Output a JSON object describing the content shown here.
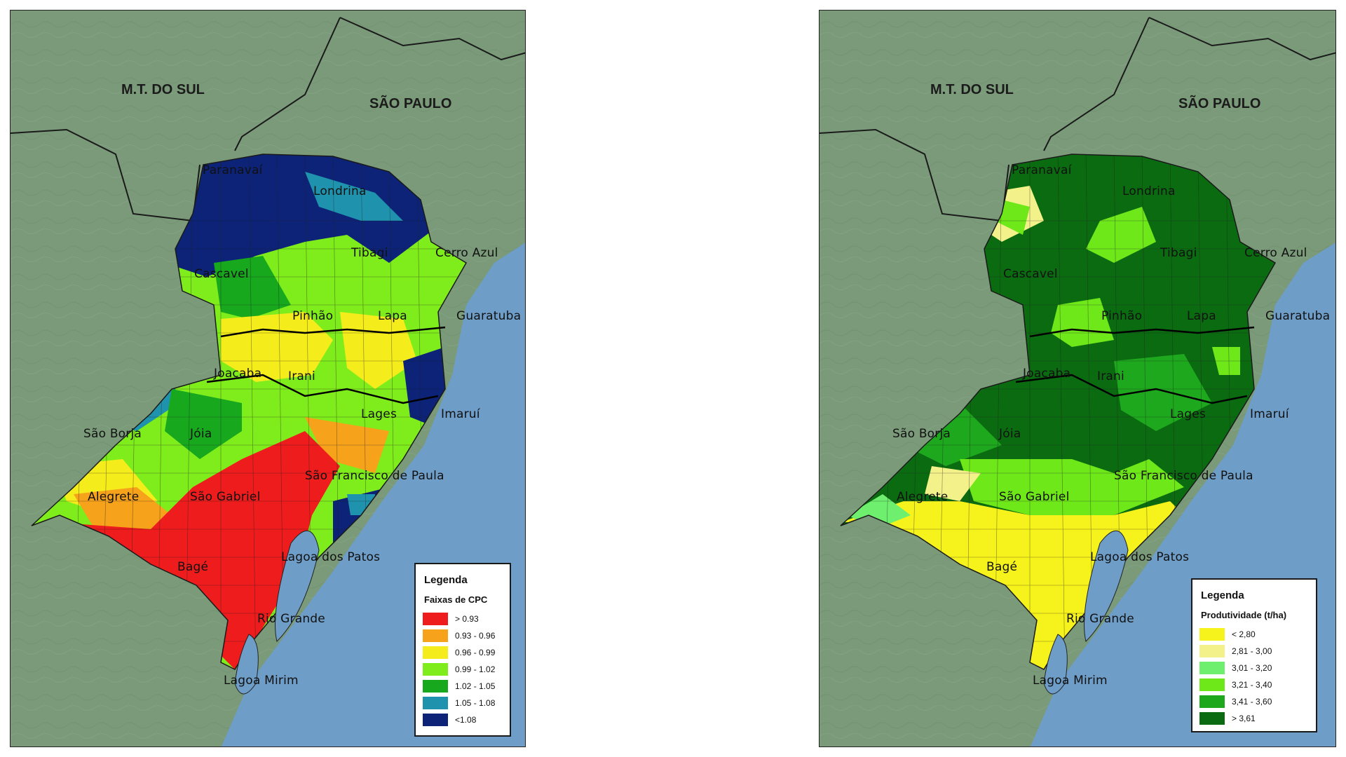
{
  "colors": {
    "ocean": "#6e9dc8",
    "land": "#7a9a7a",
    "border_line": "#1a1a1a"
  },
  "left_map": {
    "state_labels": {
      "mt_do_sul": "M.T. DO SUL",
      "sao_paulo": "SÃO PAULO"
    },
    "places": {
      "paranavai": "Paranavaí",
      "londrina": "Londrina",
      "tibagi": "Tibagi",
      "cerro_azul": "Cerro Azul",
      "cascavel": "Cascavel",
      "pinhao": "Pinhão",
      "lapa": "Lapa",
      "guaratuba": "Guaratuba",
      "lages": "Lages",
      "imarui": "Imaruí",
      "joacaba": "Joaçaba",
      "irani": "Irani",
      "sao_borja": "São Borja",
      "joia": "Jóia",
      "sao_francisco_de_paula": "São Francisco de Paula",
      "alegrete": "Alegrete",
      "sao_gabriel": "São Gabriel",
      "lagoa_dos_patos": "Lagoa dos Patos",
      "bage": "Bagé",
      "rio_grande": "Rio Grande",
      "lagoa_mirim": "Lagoa Mirim"
    },
    "legend": {
      "title": "Legenda",
      "subtitle": "Faixas de CPC",
      "items": [
        {
          "label": "> 0.93",
          "color": "#ee1c1c"
        },
        {
          "label": "0.93 - 0.96",
          "color": "#f7a21b"
        },
        {
          "label": "0.96 - 0.99",
          "color": "#f5ec1c"
        },
        {
          "label": "0.99 - 1.02",
          "color": "#7fec1c"
        },
        {
          "label": "1.02 - 1.05",
          "color": "#17a81d"
        },
        {
          "label": "1.05 - 1.08",
          "color": "#1f93ad"
        },
        {
          "label": "<1.08",
          "color": "#0c2377"
        }
      ]
    }
  },
  "right_map": {
    "state_labels": {
      "mt_do_sul": "M.T. DO SUL",
      "sao_paulo": "SÃO PAULO"
    },
    "places": {
      "paranavai": "Paranavaí",
      "londrina": "Londrina",
      "tibagi": "Tibagi",
      "cerro_azul": "Cerro Azul",
      "cascavel": "Cascavel",
      "pinhao": "Pinhão",
      "lapa": "Lapa",
      "guaratuba": "Guaratuba",
      "lages": "Lages",
      "imarui": "Imaruí",
      "joacaba": "Joaçaba",
      "irani": "Irani",
      "sao_borja": "São Borja",
      "joia": "Jóia",
      "sao_francisco_de_paula": "São Francisco de Paula",
      "alegrete": "Alegrete",
      "sao_gabriel": "São Gabriel",
      "lagoa_dos_patos": "Lagoa dos Patos",
      "bage": "Bagé",
      "rio_grande": "Rio Grande",
      "lagoa_mirim": "Lagoa Mirim"
    },
    "legend": {
      "title": "Legenda",
      "subtitle": "Produtividade (t/ha)",
      "items": [
        {
          "label": "< 2,80",
          "color": "#f6f21c"
        },
        {
          "label": "2,81 - 3,00",
          "color": "#f3f18a"
        },
        {
          "label": "3,01 - 3,20",
          "color": "#6ef06e"
        },
        {
          "label": "3,21 - 3,40",
          "color": "#6fe81a"
        },
        {
          "label": "3,41 - 3,60",
          "color": "#1ea81e"
        },
        {
          "label": "> 3,61",
          "color": "#0b6b10"
        }
      ]
    }
  }
}
